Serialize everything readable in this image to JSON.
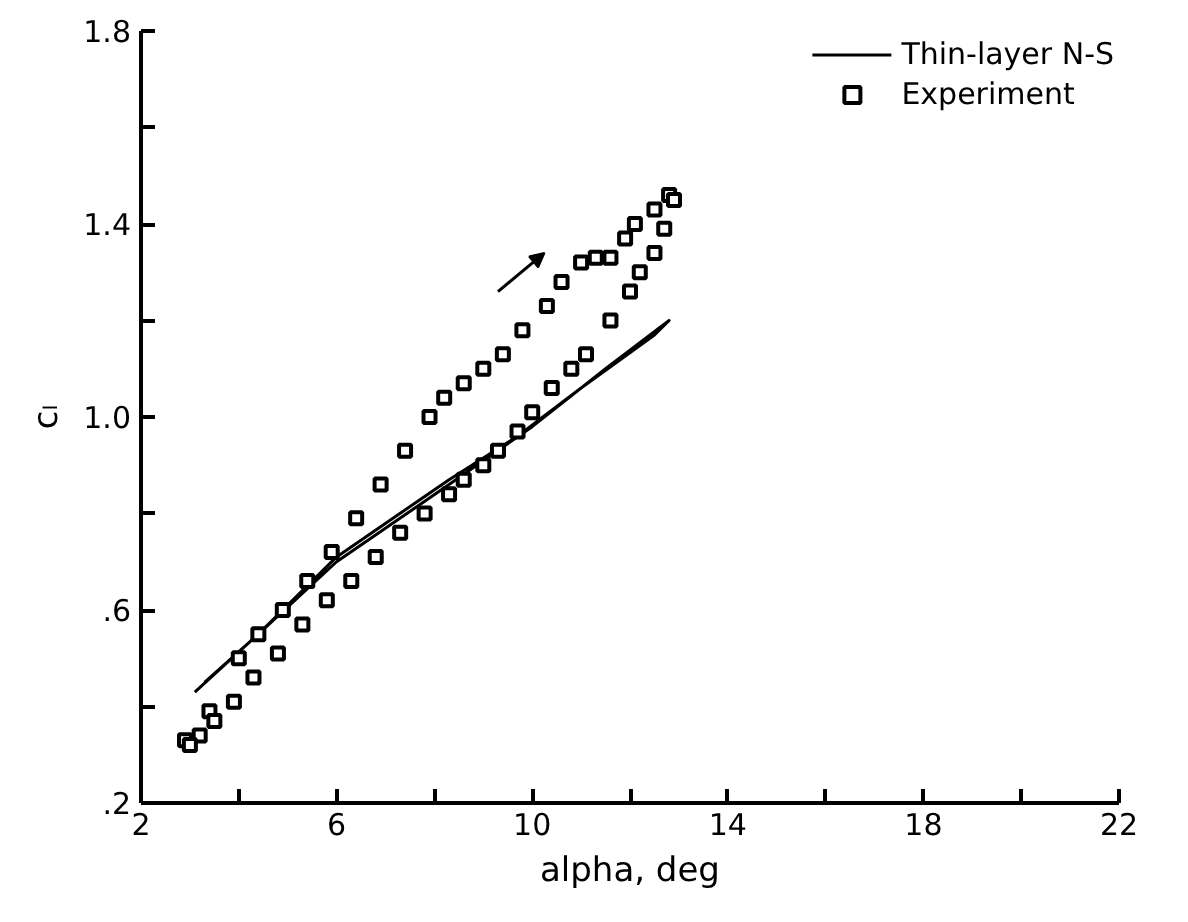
{
  "chart_data": {
    "type": "line",
    "xlabel": "alpha, deg",
    "ylabel": "cₗ",
    "xlim": [
      2,
      22
    ],
    "ylim": [
      0.2,
      1.8
    ],
    "xticks": [
      2,
      {
        "value": 4,
        "label": null
      },
      6,
      {
        "value": 8,
        "label": null
      },
      10,
      {
        "value": 12,
        "label": null
      },
      14,
      {
        "value": 16,
        "label": null
      },
      18,
      {
        "value": 20,
        "label": null
      },
      22
    ],
    "yticks": [
      {
        "value": 0.2,
        "label": ".2"
      },
      {
        "value": 0.4,
        "label": null
      },
      {
        "value": 0.6,
        "label": ".6"
      },
      {
        "value": 0.8,
        "label": null
      },
      {
        "value": 1.0,
        "label": "1.0"
      },
      {
        "value": 1.2,
        "label": null
      },
      {
        "value": 1.4,
        "label": "1.4"
      },
      {
        "value": 1.6,
        "label": null
      },
      {
        "value": 1.8,
        "label": "1.8"
      }
    ],
    "grid": false,
    "legend": "top right",
    "series": [
      {
        "name": "Thin-layer N-S",
        "color": "#000000",
        "line_style": "solid",
        "marker": "none",
        "x": [
          3.1,
          4.4,
          6.0,
          8.3,
          10.0,
          11.5,
          12.8,
          12.5,
          11.0,
          9.7,
          8.3,
          6.0,
          4.4,
          3.3
        ],
        "values": [
          0.43,
          0.55,
          0.7,
          0.86,
          0.98,
          1.1,
          1.2,
          1.17,
          1.06,
          0.96,
          0.87,
          0.71,
          0.55,
          0.45
        ]
      },
      {
        "name": "Experiment",
        "type": "scatter",
        "color": "#000000",
        "marker": "square",
        "x": [
          2.9,
          3.4,
          4.0,
          4.4,
          4.9,
          5.4,
          5.9,
          6.4,
          6.9,
          7.4,
          7.9,
          8.2,
          8.6,
          9.0,
          9.4,
          9.8,
          10.3,
          10.6,
          11.0,
          11.3,
          11.6,
          11.9,
          12.1,
          12.5,
          12.8,
          12.9,
          12.7,
          12.5,
          12.2,
          12.0,
          11.6,
          11.1,
          10.8,
          10.4,
          10.0,
          9.7,
          9.3,
          9.0,
          8.6,
          8.3,
          7.8,
          7.3,
          6.8,
          6.3,
          5.8,
          5.3,
          4.8,
          4.3,
          3.9,
          3.5,
          3.2,
          3.0
        ],
        "values": [
          0.33,
          0.39,
          0.5,
          0.55,
          0.6,
          0.66,
          0.72,
          0.79,
          0.86,
          0.93,
          1.0,
          1.04,
          1.07,
          1.1,
          1.13,
          1.18,
          1.23,
          1.28,
          1.32,
          1.33,
          1.33,
          1.37,
          1.4,
          1.43,
          1.46,
          1.45,
          1.39,
          1.34,
          1.3,
          1.26,
          1.2,
          1.13,
          1.1,
          1.06,
          1.01,
          0.97,
          0.93,
          0.9,
          0.87,
          0.84,
          0.8,
          0.76,
          0.71,
          0.66,
          0.62,
          0.57,
          0.51,
          0.46,
          0.41,
          0.37,
          0.34,
          0.32
        ]
      }
    ]
  }
}
